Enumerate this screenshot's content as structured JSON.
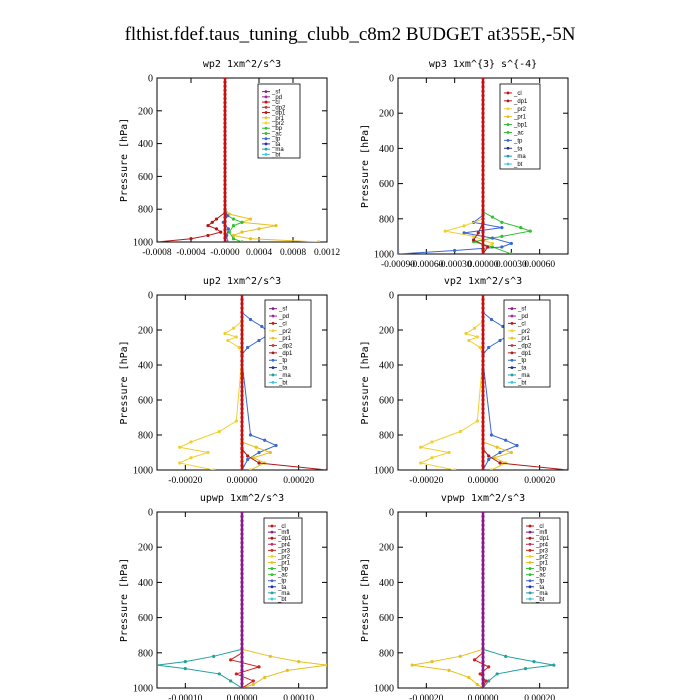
{
  "title": "flthist.fdef.taus_tuning_clubb_c8m2  BUDGET at355E,-5N",
  "colors": {
    "_sf": "#8a1a8a",
    "_pd": "#9a2a9a",
    "_cl": "#c81010",
    "_dp2": "#cc3030",
    "_dp1": "#b01818",
    "_pr1": "#e8c020",
    "_pr2": "#f0d030",
    "_bp": "#30c030",
    "_bp1": "#30c030",
    "_ac": "#30c030",
    "_tp": "#3a68d0",
    "_ta": "#2030a8",
    "_ma": "#20a0a0",
    "_bt": "#40c8e0",
    "_mfl": "#8a1a8a",
    "_pr3": "#d02020",
    "_pr4": "#c03060"
  },
  "chart_data": [
    {
      "type": "line",
      "title": "wp2  1xm^2/s^3",
      "ylabel": "Pressure [hPa]",
      "ylim": [
        0,
        1000
      ],
      "yticks": [
        "0",
        "200",
        "400",
        "600",
        "800",
        "1000"
      ],
      "xlim": [
        -0.0008,
        0.0012
      ],
      "xticks": [
        "-0.0008",
        "-0.0004",
        "-0.0000",
        "0.0004",
        "0.0008",
        "0.0012"
      ],
      "xtick_values": [
        -0.0008,
        -0.0004,
        0,
        0.0004,
        0.0008,
        0.0012
      ],
      "legend": [
        "_sf",
        "_pd",
        "_cl",
        "_dp2",
        "_dp1",
        "_pr1",
        "_pr2",
        "_bp",
        "_ac",
        "_tp",
        "_ta",
        "_ma",
        "_bt"
      ],
      "legend_position": "top-right",
      "series": [
        {
          "name": "_pr1",
          "y": [
            800,
            830,
            860,
            880,
            900,
            920,
            940,
            960,
            980,
            1000
          ],
          "x": [
            0,
            5e-05,
            0.0003,
            0.0002,
            0.0006,
            0.0004,
            0.0002,
            0.0001,
            0.0003,
            0.0011
          ]
        },
        {
          "name": "_dp1",
          "y": [
            820,
            860,
            880,
            900,
            920,
            940,
            960,
            980,
            1000
          ],
          "x": [
            0,
            -0.0001,
            -0.00015,
            -0.0002,
            -0.0001,
            -5e-05,
            -0.0002,
            -0.0004,
            -0.0008
          ]
        },
        {
          "name": "_ac",
          "y": [
            830,
            860,
            880,
            900,
            940,
            980,
            1000
          ],
          "x": [
            0,
            0.0001,
            0.0002,
            0.0001,
            5e-05,
            0.0001,
            0.0002
          ]
        },
        {
          "name": "_tp",
          "y": [
            800,
            840,
            880,
            920,
            960,
            1000
          ],
          "x": [
            0,
            3e-05,
            -2e-05,
            4e-05,
            2e-05,
            3e-05
          ]
        },
        {
          "name": "_cl",
          "y": [
            0,
            1000
          ],
          "x": [
            0,
            0
          ]
        }
      ]
    },
    {
      "type": "line",
      "title": "wp3  1xm^{3} s^{-4}",
      "ylabel": "Pressure [hPa]",
      "ylim": [
        0,
        1000
      ],
      "yticks": [
        "0",
        "200",
        "400",
        "600",
        "800",
        "1000"
      ],
      "xlim": [
        -0.0009,
        0.0009
      ],
      "xticks": [
        "-0.00090",
        "-0.00060",
        "-0.00030",
        "0.00000",
        "0.00030",
        "0.00060"
      ],
      "xtick_values": [
        -0.0009,
        -0.0006,
        -0.0003,
        0,
        0.0003,
        0.0006
      ],
      "legend": [
        "_cl",
        "_dp1",
        "_pr2",
        "_pr1",
        "_bp1",
        "_ac",
        "_tp",
        "_ta",
        "_ma",
        "_bt"
      ],
      "legend_position": "top-right",
      "series": [
        {
          "name": "_ac",
          "y": [
            760,
            790,
            820,
            850,
            870,
            900,
            930,
            960,
            1000
          ],
          "x": [
            0,
            0.0001,
            0.0002,
            0.0004,
            0.0005,
            0.0002,
            -0.0001,
            0.0001,
            0.0003
          ]
        },
        {
          "name": "_tp",
          "y": [
            780,
            820,
            850,
            880,
            910,
            940,
            960,
            980,
            1000
          ],
          "x": [
            0,
            -0.0001,
            0.0002,
            -0.0002,
            0.0001,
            0.0003,
            0.0002,
            -0.0003,
            -0.0009
          ]
        },
        {
          "name": "_pr2",
          "y": [
            800,
            840,
            870,
            900,
            940,
            980
          ],
          "x": [
            0,
            -0.0002,
            -0.0004,
            -0.0001,
            0.0001,
            0
          ]
        },
        {
          "name": "_dp1",
          "y": [
            820,
            880,
            920,
            960,
            1000
          ],
          "x": [
            0,
            -5e-05,
            -0.0001,
            5e-05,
            0
          ]
        },
        {
          "name": "_cl",
          "y": [
            0,
            1000
          ],
          "x": [
            0,
            0
          ]
        }
      ]
    },
    {
      "type": "line",
      "title": "up2  1xm^2/s^3",
      "ylabel": "Pressure [hPa]",
      "ylim": [
        0,
        1000
      ],
      "yticks": [
        "0",
        "200",
        "400",
        "600",
        "800",
        "1000"
      ],
      "xlim": [
        -0.0003,
        0.0003
      ],
      "xticks": [
        "-0.00020",
        "0.00000",
        "0.00020"
      ],
      "xtick_values": [
        -0.0002,
        0,
        0.0002
      ],
      "legend": [
        "_sf",
        "_pd",
        "_cl",
        "_pr2",
        "_pr1",
        "_dp2",
        "_dp1",
        "_tp",
        "_ta",
        "_ma",
        "_bt"
      ],
      "legend_position": "top-right",
      "series": [
        {
          "name": "_tp",
          "y": [
            100,
            140,
            180,
            220,
            260,
            300,
            340,
            380,
            800,
            830,
            860,
            900,
            940,
            1000
          ],
          "x": [
            0,
            3e-05,
            7e-05,
            0.0001,
            6e-05,
            2e-05,
            0,
            0,
            3e-05,
            8e-05,
            0.00012,
            6e-05,
            2e-05,
            0
          ]
        },
        {
          "name": "_pr2",
          "y": [
            150,
            190,
            220,
            240,
            260,
            300,
            350,
            720,
            780,
            840,
            870,
            900,
            930,
            960,
            1000
          ],
          "x": [
            0,
            -3e-05,
            -6e-05,
            -2e-05,
            -5e-05,
            -1e-05,
            0,
            -2e-05,
            -8e-05,
            -0.00018,
            -0.00022,
            -0.00012,
            -0.00018,
            -0.00022,
            -0.0001
          ]
        },
        {
          "name": "_pr1",
          "y": [
            840,
            870,
            900,
            930,
            960,
            1000
          ],
          "x": [
            0,
            5e-05,
            0.0001,
            4e-05,
            8e-05,
            3e-05
          ]
        },
        {
          "name": "_dp1",
          "y": [
            880,
            920,
            960,
            1000
          ],
          "x": [
            0,
            2e-05,
            6e-05,
            0.0003
          ]
        },
        {
          "name": "_cl",
          "y": [
            0,
            1000
          ],
          "x": [
            0,
            0
          ]
        }
      ]
    },
    {
      "type": "line",
      "title": "vp2  1xm^2/s^3",
      "ylabel": "Pressure [hPa]",
      "ylim": [
        0,
        1000
      ],
      "yticks": [
        "0",
        "200",
        "400",
        "600",
        "800",
        "1000"
      ],
      "xlim": [
        -0.0003,
        0.0003
      ],
      "xticks": [
        "-0.00020",
        "0.00000",
        "0.00020"
      ],
      "xtick_values": [
        -0.0002,
        0,
        0.0002
      ],
      "legend": [
        "_sf",
        "_pd",
        "_cl",
        "_pr2",
        "_pr1",
        "_dp2",
        "_dp1",
        "_tp",
        "_ta",
        "_ma",
        "_bt"
      ],
      "legend_position": "top-right",
      "series": [
        {
          "name": "_tp",
          "y": [
            100,
            140,
            180,
            220,
            260,
            300,
            340,
            380,
            800,
            830,
            860,
            900,
            940,
            1000
          ],
          "x": [
            0,
            3e-05,
            7e-05,
            0.0001,
            6e-05,
            2e-05,
            0,
            0,
            3e-05,
            8e-05,
            0.00012,
            6e-05,
            2e-05,
            0
          ]
        },
        {
          "name": "_pr2",
          "y": [
            150,
            190,
            220,
            240,
            260,
            300,
            350,
            720,
            780,
            840,
            870,
            900,
            930,
            960,
            1000
          ],
          "x": [
            0,
            -3e-05,
            -6e-05,
            -2e-05,
            -5e-05,
            -1e-05,
            0,
            -2e-05,
            -8e-05,
            -0.00018,
            -0.00022,
            -0.00012,
            -0.00018,
            -0.00022,
            -0.0001
          ]
        },
        {
          "name": "_pr1",
          "y": [
            840,
            870,
            900,
            930,
            960,
            1000
          ],
          "x": [
            0,
            5e-05,
            0.0001,
            4e-05,
            8e-05,
            3e-05
          ]
        },
        {
          "name": "_dp1",
          "y": [
            880,
            920,
            960,
            1000
          ],
          "x": [
            0,
            2e-05,
            6e-05,
            0.0003
          ]
        },
        {
          "name": "_cl",
          "y": [
            0,
            1000
          ],
          "x": [
            0,
            0
          ]
        }
      ]
    },
    {
      "type": "line",
      "title": "upwp  1xm^2/s^3",
      "ylabel": "Pressure [hPa]",
      "ylim": [
        0,
        1000
      ],
      "yticks": [
        "0",
        "200",
        "400",
        "600",
        "800",
        "1000"
      ],
      "xlim": [
        -0.00015,
        0.00015
      ],
      "xticks": [
        "-0.00010",
        "0.00000",
        "0.00010"
      ],
      "xtick_values": [
        -0.0001,
        0,
        0.0001
      ],
      "legend": [
        "_cl",
        "_mfl",
        "_dp1",
        "_pr4",
        "_pr3",
        "_pr2",
        "_pr1",
        "_bp",
        "_ac",
        "_tp",
        "_ta",
        "_ma",
        "_bt"
      ],
      "legend_position": "top-right",
      "series": [
        {
          "name": "_ma",
          "y": [
            780,
            820,
            850,
            870,
            890,
            920,
            960,
            1000
          ],
          "x": [
            0,
            -5e-05,
            -0.0001,
            -0.00015,
            -0.0001,
            -4e-05,
            -2e-05,
            0
          ]
        },
        {
          "name": "_pr1",
          "y": [
            780,
            820,
            850,
            870,
            900,
            940,
            980,
            1000
          ],
          "x": [
            0,
            5e-05,
            0.0001,
            0.00015,
            8e-05,
            4e-05,
            2e-05,
            0
          ]
        },
        {
          "name": "_pr3",
          "y": [
            800,
            840,
            880,
            920,
            960,
            1000
          ],
          "x": [
            0,
            -2e-05,
            3e-05,
            -1e-05,
            2e-05,
            0
          ]
        },
        {
          "name": "_mfl",
          "y": [
            0,
            1000
          ],
          "x": [
            0,
            0
          ]
        }
      ]
    },
    {
      "type": "line",
      "title": "vpwp  1xm^2/s^3",
      "ylabel": "Pressure [hPa]",
      "ylim": [
        0,
        1000
      ],
      "yticks": [
        "0",
        "200",
        "400",
        "600",
        "800",
        "1000"
      ],
      "xlim": [
        -0.0003,
        0.0003
      ],
      "xticks": [
        "-0.00020",
        "0.00000",
        "0.00020"
      ],
      "xtick_values": [
        -0.0002,
        0,
        0.0002
      ],
      "legend": [
        "_cl",
        "_mfl",
        "_dp1",
        "_pr4",
        "_pr3",
        "_pr2",
        "_pr1",
        "_bp",
        "_ac",
        "_tp",
        "_ta",
        "_ma",
        "_bt"
      ],
      "legend_position": "top-right",
      "series": [
        {
          "name": "_ma",
          "y": [
            780,
            820,
            850,
            870,
            890,
            920,
            960,
            1000
          ],
          "x": [
            0,
            8e-05,
            0.00018,
            0.00025,
            0.00015,
            5e-05,
            2e-05,
            0
          ]
        },
        {
          "name": "_pr1",
          "y": [
            780,
            820,
            850,
            870,
            900,
            940,
            980,
            1000
          ],
          "x": [
            0,
            -8e-05,
            -0.00018,
            -0.00025,
            -0.00012,
            -5e-05,
            -2e-05,
            0
          ]
        },
        {
          "name": "_pr3",
          "y": [
            800,
            840,
            880,
            920,
            960,
            1000
          ],
          "x": [
            0,
            -3e-05,
            2e-05,
            -1e-05,
            1e-05,
            0
          ]
        },
        {
          "name": "_mfl",
          "y": [
            0,
            1000
          ],
          "x": [
            0,
            0
          ]
        }
      ]
    }
  ]
}
